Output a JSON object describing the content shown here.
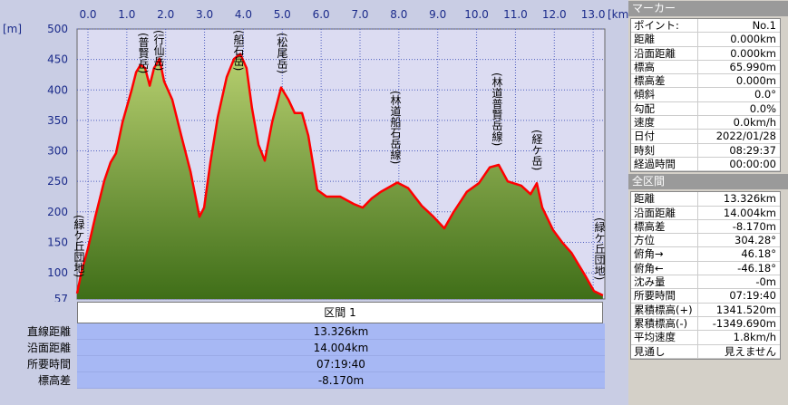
{
  "chart_data": {
    "type": "area",
    "x_unit": "[km]",
    "y_unit": "[m]",
    "x": [
      -0.28,
      -0.16,
      0,
      0.19,
      0.42,
      0.58,
      0.72,
      0.89,
      1.12,
      1.24,
      1.35,
      1.47,
      1.59,
      1.7,
      1.84,
      1.96,
      2.17,
      2.4,
      2.64,
      2.87,
      2.99,
      3.15,
      3.34,
      3.57,
      3.76,
      3.92,
      4.08,
      4.22,
      4.39,
      4.55,
      4.74,
      4.97,
      5.16,
      5.32,
      5.51,
      5.67,
      5.9,
      6.14,
      6.49,
      6.84,
      7.07,
      7.3,
      7.54,
      7.96,
      8.24,
      8.59,
      8.89,
      9.17,
      9.4,
      9.75,
      10.06,
      10.34,
      10.57,
      10.8,
      11.15,
      11.39,
      11.55,
      11.69,
      11.97,
      12.2,
      12.44,
      12.79,
      13.02,
      13.25
    ],
    "values": [
      66,
      103,
      140,
      192,
      251,
      281,
      296,
      347,
      399,
      429,
      441,
      436,
      407,
      436,
      451,
      414,
      384,
      325,
      266,
      192,
      207,
      281,
      355,
      421,
      451,
      459,
      436,
      370,
      310,
      284,
      347,
      404,
      384,
      362,
      362,
      325,
      236,
      225,
      225,
      213,
      207,
      222,
      233,
      248,
      239,
      210,
      192,
      173,
      199,
      233,
      247,
      273,
      277,
      250,
      243,
      229,
      247,
      207,
      170,
      150,
      133,
      96,
      70,
      63
    ],
    "color": "#6f9a2c",
    "line_color": "#ff0000",
    "xlim": [
      -0.28,
      13.3
    ],
    "ylim": [
      57,
      500
    ],
    "xticks": [
      {
        "value": 0,
        "label": "0.0"
      },
      {
        "value": 1,
        "label": "1.0"
      },
      {
        "value": 2,
        "label": "2.0"
      },
      {
        "value": 3,
        "label": "3.0"
      },
      {
        "value": 4,
        "label": "4.0"
      },
      {
        "value": 5,
        "label": "5.0"
      },
      {
        "value": 6,
        "label": "6.0"
      },
      {
        "value": 7,
        "label": "7.0"
      },
      {
        "value": 8,
        "label": "8.0"
      },
      {
        "value": 9,
        "label": "9.0"
      },
      {
        "value": 10,
        "label": "10.0"
      },
      {
        "value": 11,
        "label": "11.0"
      },
      {
        "value": 12,
        "label": "12.0"
      },
      {
        "value": 13,
        "label": "13.0"
      }
    ],
    "yticks": [
      57,
      100,
      150,
      200,
      250,
      300,
      350,
      400,
      450,
      500
    ],
    "grid": true,
    "annotations": [
      "(緑ケ丘団地)",
      "(普賢岳)",
      "(行仙岳)",
      "(船石岳)",
      "(松尾岳)",
      "(林道船石岳線)",
      "(林道普賢岳線)",
      "(経ケ岳)",
      "(緑ケ丘団地)"
    ]
  },
  "section": "区間 1",
  "summary": [
    [
      "直線距離",
      "13.326km"
    ],
    [
      "沿面距離",
      "14.004km"
    ],
    [
      "所要時間",
      "07:19:40"
    ],
    [
      "標高差",
      "-8.170m"
    ]
  ],
  "marker_panel": {
    "title": "マーカー",
    "rows": [
      [
        "ポイント:",
        "No.1"
      ],
      [
        "距離",
        "0.000km"
      ],
      [
        "沿面距離",
        "0.000km"
      ],
      [
        "標高",
        "65.990m"
      ],
      [
        "標高差",
        "0.000m"
      ],
      [
        "傾斜",
        "0.0°"
      ],
      [
        "勾配",
        "0.0%"
      ],
      [
        "速度",
        "0.0km/h"
      ],
      [
        "日付",
        "2022/01/28"
      ],
      [
        "時刻",
        "08:29:37"
      ],
      [
        "経過時間",
        "00:00:00"
      ]
    ]
  },
  "total_panel": {
    "title": "全区間",
    "rows": [
      [
        "距離",
        "13.326km"
      ],
      [
        "沿面距離",
        "14.004km"
      ],
      [
        "標高差",
        "-8.170m"
      ],
      [
        "方位",
        "304.28°"
      ],
      [
        "俯角→",
        "46.18°"
      ],
      [
        "俯角←",
        "-46.18°"
      ],
      [
        "沈み量",
        "-0m"
      ],
      [
        "所要時間",
        "07:19:40"
      ],
      [
        "累積標高(+)",
        "1341.520m"
      ],
      [
        "累積標高(-)",
        "-1349.690m"
      ],
      [
        "平均速度",
        "1.8km/h"
      ],
      [
        "見通し",
        "見えません"
      ]
    ]
  }
}
